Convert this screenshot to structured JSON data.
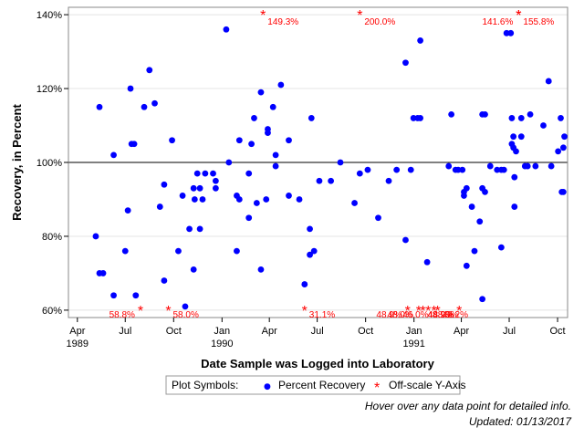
{
  "chart_data": {
    "type": "scatter",
    "xlabel": "Date Sample was Logged into Laboratory",
    "ylabel": "Recovery, in Percent",
    "x_range": [
      "1989-03-15",
      "1991-10-20"
    ],
    "ylim": [
      58,
      142
    ],
    "y_ticks": [
      60,
      80,
      100,
      120,
      140
    ],
    "y_tick_labels": [
      "60%",
      "80%",
      "100%",
      "120%",
      "140%"
    ],
    "x_ticks": [
      {
        "date": "1989-04-01",
        "label": "Apr",
        "year_label": "1989"
      },
      {
        "date": "1989-07-01",
        "label": "Jul",
        "year_label": ""
      },
      {
        "date": "1989-10-01",
        "label": "Oct",
        "year_label": ""
      },
      {
        "date": "1990-01-01",
        "label": "Jan",
        "year_label": "1990"
      },
      {
        "date": "1990-04-01",
        "label": "Apr",
        "year_label": ""
      },
      {
        "date": "1990-07-01",
        "label": "Jul",
        "year_label": ""
      },
      {
        "date": "1990-10-01",
        "label": "Oct",
        "year_label": ""
      },
      {
        "date": "1991-01-01",
        "label": "Jan",
        "year_label": "1991"
      },
      {
        "date": "1991-04-01",
        "label": "Apr",
        "year_label": ""
      },
      {
        "date": "1991-07-01",
        "label": "Jul",
        "year_label": ""
      },
      {
        "date": "1991-10-01",
        "label": "Oct",
        "year_label": ""
      }
    ],
    "reference_line": 100,
    "grid": "horizontal",
    "series": [
      {
        "name": "Percent Recovery",
        "color": "#0000ff",
        "marker": "circle",
        "points": [
          [
            "1989-05-06",
            80
          ],
          [
            "1989-05-13",
            115
          ],
          [
            "1989-05-13",
            70
          ],
          [
            "1989-05-20",
            70
          ],
          [
            "1989-06-09",
            64
          ],
          [
            "1989-06-09",
            102
          ],
          [
            "1989-07-01",
            76
          ],
          [
            "1989-07-06",
            87
          ],
          [
            "1989-07-11",
            120
          ],
          [
            "1989-07-13",
            105
          ],
          [
            "1989-07-18",
            105
          ],
          [
            "1989-07-21",
            64
          ],
          [
            "1989-08-06",
            115
          ],
          [
            "1989-08-16",
            125
          ],
          [
            "1989-08-26",
            116
          ],
          [
            "1989-09-05",
            88
          ],
          [
            "1989-09-13",
            68
          ],
          [
            "1989-09-13",
            94
          ],
          [
            "1989-09-28",
            106
          ],
          [
            "1989-10-10",
            76
          ],
          [
            "1989-10-18",
            91
          ],
          [
            "1989-10-23",
            61
          ],
          [
            "1989-10-31",
            82
          ],
          [
            "1989-11-08",
            71
          ],
          [
            "1989-11-08",
            93
          ],
          [
            "1989-11-10",
            90
          ],
          [
            "1989-11-15",
            97
          ],
          [
            "1989-11-20",
            82
          ],
          [
            "1989-11-20",
            93
          ],
          [
            "1989-11-25",
            90
          ],
          [
            "1989-11-30",
            97
          ],
          [
            "1989-12-15",
            97
          ],
          [
            "1989-12-20",
            95
          ],
          [
            "1989-12-20",
            93
          ],
          [
            "1990-01-09",
            136
          ],
          [
            "1990-01-14",
            100
          ],
          [
            "1990-01-29",
            76
          ],
          [
            "1990-01-29",
            91
          ],
          [
            "1990-02-03",
            90
          ],
          [
            "1990-02-03",
            106
          ],
          [
            "1990-02-21",
            85
          ],
          [
            "1990-02-21",
            97
          ],
          [
            "1990-02-26",
            105
          ],
          [
            "1990-03-03",
            112
          ],
          [
            "1990-03-08",
            89
          ],
          [
            "1990-03-16",
            119
          ],
          [
            "1990-03-16",
            71
          ],
          [
            "1990-03-26",
            90
          ],
          [
            "1990-03-29",
            108
          ],
          [
            "1990-03-29",
            109
          ],
          [
            "1990-04-08",
            115
          ],
          [
            "1990-04-13",
            99
          ],
          [
            "1990-04-13",
            102
          ],
          [
            "1990-04-23",
            121
          ],
          [
            "1990-05-08",
            91
          ],
          [
            "1990-05-08",
            106
          ],
          [
            "1990-05-28",
            90
          ],
          [
            "1990-06-07",
            67
          ],
          [
            "1990-06-17",
            82
          ],
          [
            "1990-06-17",
            75
          ],
          [
            "1990-06-20",
            112
          ],
          [
            "1990-06-25",
            76
          ],
          [
            "1990-07-05",
            95
          ],
          [
            "1990-07-27",
            95
          ],
          [
            "1990-08-14",
            100
          ],
          [
            "1990-09-10",
            89
          ],
          [
            "1990-09-20",
            97
          ],
          [
            "1990-10-05",
            98
          ],
          [
            "1990-10-25",
            85
          ],
          [
            "1990-11-14",
            95
          ],
          [
            "1990-11-29",
            98
          ],
          [
            "1990-12-16",
            127
          ],
          [
            "1990-12-16",
            79
          ],
          [
            "1990-12-26",
            98
          ],
          [
            "1990-12-31",
            112
          ],
          [
            "1991-01-08",
            112
          ],
          [
            "1991-01-13",
            133
          ],
          [
            "1991-01-13",
            112
          ],
          [
            "1991-01-26",
            73
          ],
          [
            "1991-03-08",
            99
          ],
          [
            "1991-03-13",
            113
          ],
          [
            "1991-03-21",
            98
          ],
          [
            "1991-03-26",
            98
          ],
          [
            "1991-04-03",
            98
          ],
          [
            "1991-04-06",
            92
          ],
          [
            "1991-04-06",
            91
          ],
          [
            "1991-04-11",
            93
          ],
          [
            "1991-04-11",
            72
          ],
          [
            "1991-04-21",
            88
          ],
          [
            "1991-04-26",
            76
          ],
          [
            "1991-05-06",
            84
          ],
          [
            "1991-05-11",
            113
          ],
          [
            "1991-05-11",
            93
          ],
          [
            "1991-05-11",
            63
          ],
          [
            "1991-05-16",
            113
          ],
          [
            "1991-05-16",
            92
          ],
          [
            "1991-05-26",
            99
          ],
          [
            "1991-06-08",
            98
          ],
          [
            "1991-06-16",
            77
          ],
          [
            "1991-06-16",
            98
          ],
          [
            "1991-06-21",
            98
          ],
          [
            "1991-06-26",
            135
          ],
          [
            "1991-07-04",
            135
          ],
          [
            "1991-07-06",
            112
          ],
          [
            "1991-07-06",
            105
          ],
          [
            "1991-07-09",
            107
          ],
          [
            "1991-07-09",
            104
          ],
          [
            "1991-07-11",
            96
          ],
          [
            "1991-07-11",
            88
          ],
          [
            "1991-07-14",
            103
          ],
          [
            "1991-07-24",
            107
          ],
          [
            "1991-07-24",
            112
          ],
          [
            "1991-07-31",
            99
          ],
          [
            "1991-08-05",
            99
          ],
          [
            "1991-08-10",
            113
          ],
          [
            "1991-08-20",
            99
          ],
          [
            "1991-09-04",
            110
          ],
          [
            "1991-09-14",
            122
          ],
          [
            "1991-09-19",
            99
          ],
          [
            "1991-10-02",
            103
          ],
          [
            "1991-10-07",
            112
          ],
          [
            "1991-10-09",
            92
          ],
          [
            "1991-10-12",
            104
          ],
          [
            "1991-10-12",
            92
          ],
          [
            "1991-10-14",
            107
          ]
        ]
      },
      {
        "name": "Off-scale Y-Axis",
        "color": "#ff0000",
        "marker": "asterisk",
        "points": [
          {
            "date": "1989-07-30",
            "edge": "bottom",
            "label": "58.8%",
            "label_side": "left"
          },
          {
            "date": "1989-09-21",
            "edge": "bottom",
            "label": "58.0%",
            "label_side": "right"
          },
          {
            "date": "1990-03-20",
            "edge": "top",
            "label": "149.3%",
            "label_side": "right"
          },
          {
            "date": "1990-06-07",
            "edge": "bottom",
            "label": "31.1%",
            "label_side": "right"
          },
          {
            "date": "1990-09-20",
            "edge": "top",
            "label": "200.0%",
            "label_side": "right"
          },
          {
            "date": "1990-12-20",
            "edge": "bottom",
            "label": "48.9%",
            "label_side": "left"
          },
          {
            "date": "1991-01-10",
            "edge": "bottom",
            "label": "48.0%",
            "label_side": "left"
          },
          {
            "date": "1991-01-18",
            "edge": "bottom",
            "label": "48.9%",
            "label_side": "right"
          },
          {
            "date": "1991-01-28",
            "edge": "bottom",
            "label": "48.9%",
            "label_side": "right"
          },
          {
            "date": "1991-02-08",
            "edge": "bottom",
            "label": "46.0%",
            "label_side": "left"
          },
          {
            "date": "1991-02-15",
            "edge": "bottom",
            "label": "49.2%",
            "label_side": "right"
          },
          {
            "date": "1991-03-28",
            "edge": "bottom",
            "label": "48.9%",
            "label_side": "left"
          },
          {
            "date": "1991-07-19",
            "edge": "top",
            "label": "141.6%",
            "label_side": "left"
          },
          {
            "date": "1991-07-19",
            "edge": "top",
            "label": "155.8%",
            "label_side": "right"
          }
        ]
      }
    ]
  },
  "legend": {
    "title": "Plot Symbols:",
    "items": [
      {
        "label": "Percent Recovery",
        "symbol": "●",
        "color": "#0000ff"
      },
      {
        "label": "Off-scale Y-Axis",
        "symbol": "*",
        "color": "#ff0000"
      }
    ]
  },
  "footer": {
    "hint": "Hover over any data point for detailed info.",
    "updated": "Updated: 01/13/2017"
  }
}
